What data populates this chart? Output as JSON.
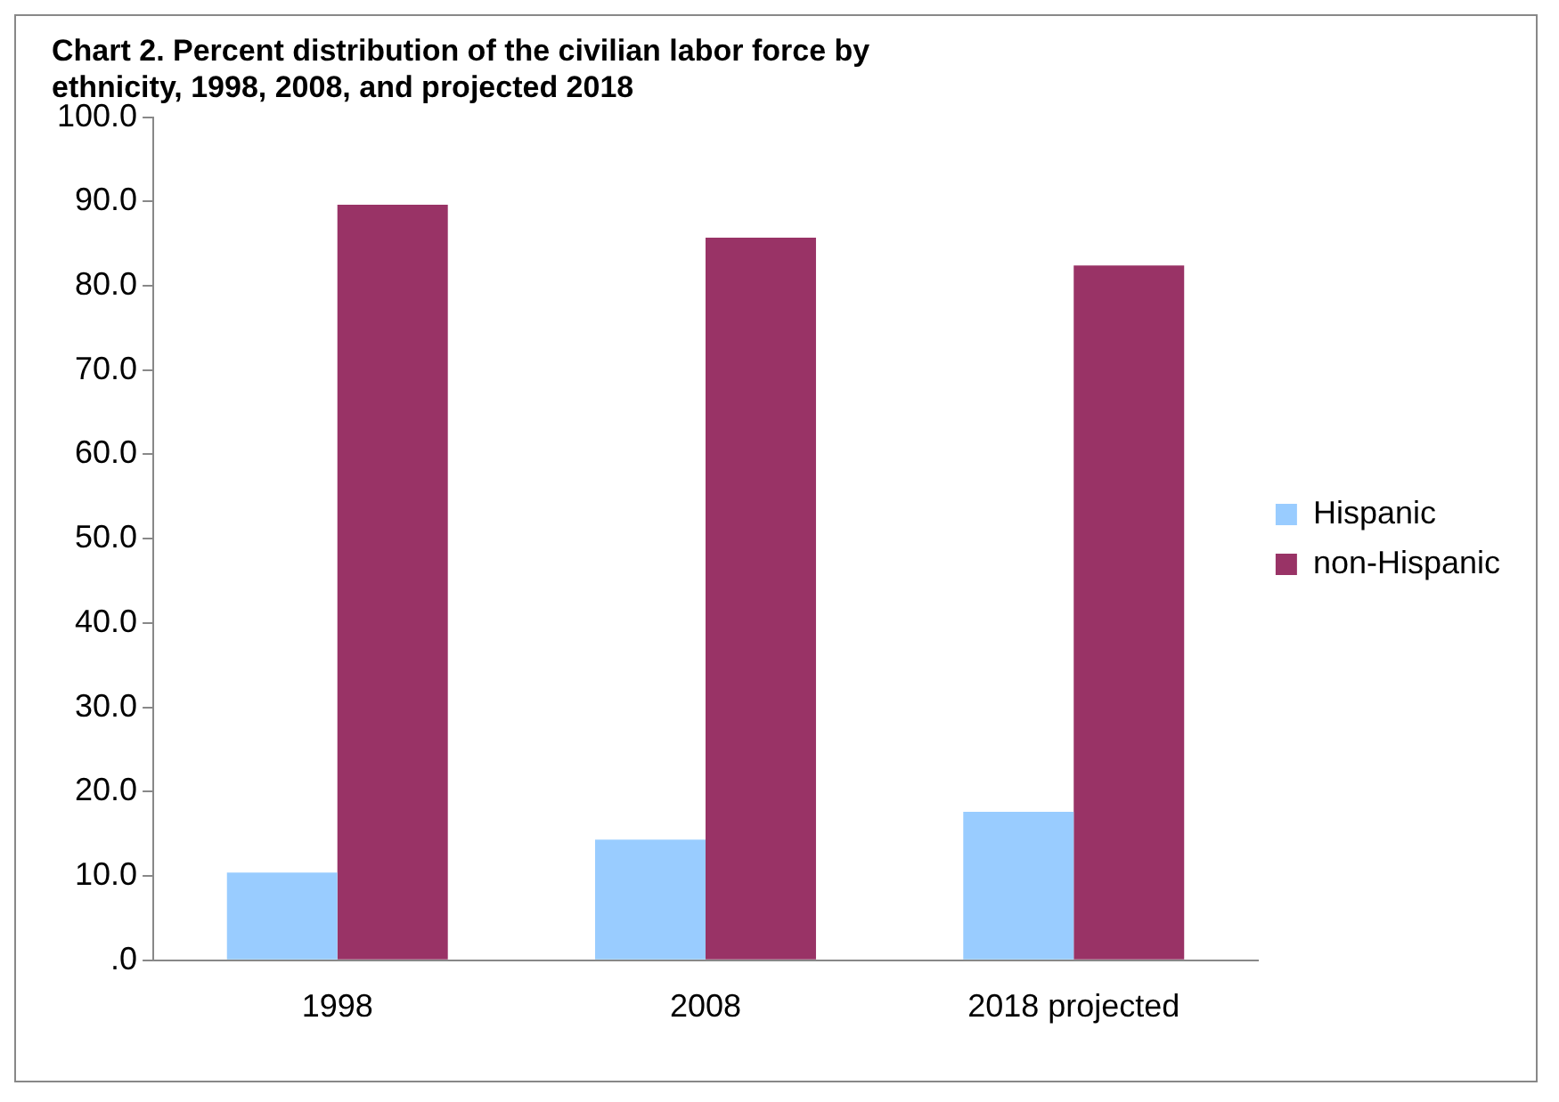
{
  "chart_data": {
    "type": "bar",
    "title": "Chart 2. Percent distribution of the civilian labor force by ethnicity, 1998, 2008, and projected 2018",
    "categories": [
      "1998",
      "2008",
      "2018 projected"
    ],
    "series": [
      {
        "name": "Hispanic",
        "color": "#99ccff",
        "values": [
          10.4,
          14.3,
          17.6
        ]
      },
      {
        "name": "non-Hispanic",
        "color": "#993366",
        "values": [
          89.6,
          85.7,
          82.4
        ]
      }
    ],
    "ylim": [
      0,
      100
    ],
    "yticks": [
      {
        "value": 0,
        "label": ".0"
      },
      {
        "value": 10,
        "label": "10.0"
      },
      {
        "value": 20,
        "label": "20.0"
      },
      {
        "value": 30,
        "label": "30.0"
      },
      {
        "value": 40,
        "label": "40.0"
      },
      {
        "value": 50,
        "label": "50.0"
      },
      {
        "value": 60,
        "label": "60.0"
      },
      {
        "value": 70,
        "label": "70.0"
      },
      {
        "value": 80,
        "label": "80.0"
      },
      {
        "value": 90,
        "label": "90.0"
      },
      {
        "value": 100,
        "label": "100.0"
      }
    ],
    "grid": false,
    "legend": "right"
  }
}
